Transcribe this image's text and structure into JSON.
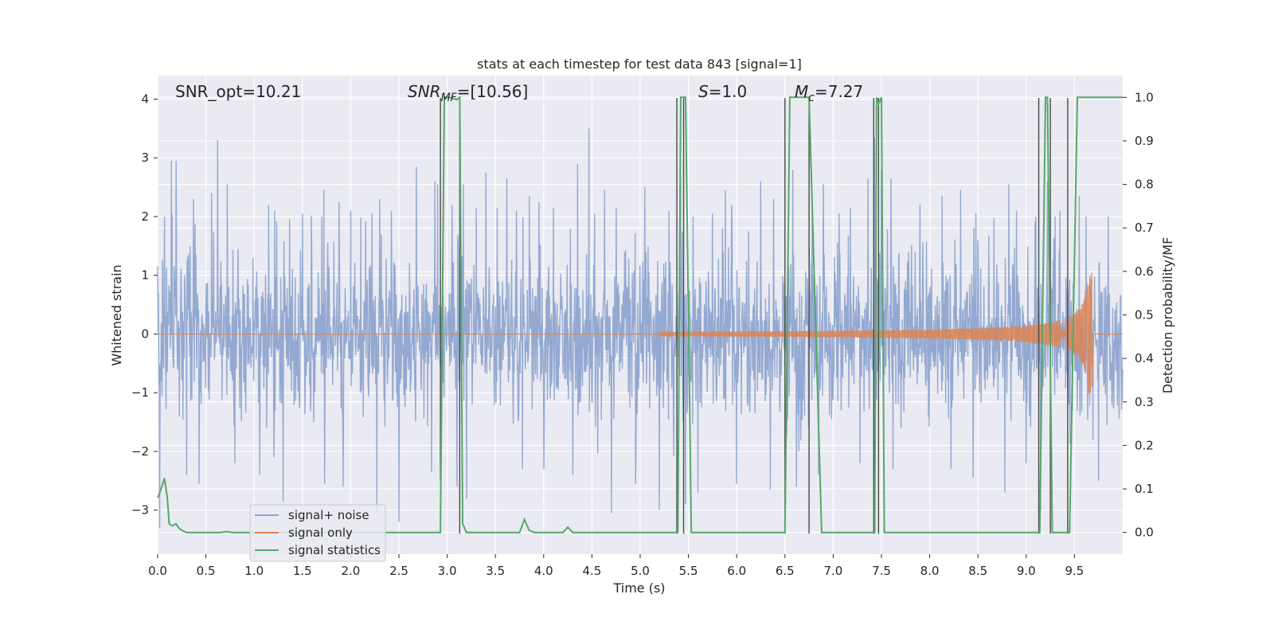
{
  "chart_data": {
    "type": "line",
    "title": "stats at each timestep for test data 843 [signal=1]",
    "xlabel": "Time (s)",
    "ylabel": "Whitened strain",
    "y2label": "Detection probability/MF",
    "xlim": [
      0,
      10
    ],
    "ylim": [
      -3.75,
      4.4
    ],
    "y2lim": [
      -0.05,
      1.05
    ],
    "xticks": [
      "0.0",
      "0.5",
      "1.0",
      "1.5",
      "2.0",
      "2.5",
      "3.0",
      "3.5",
      "4.0",
      "4.5",
      "5.0",
      "5.5",
      "6.0",
      "6.5",
      "7.0",
      "7.5",
      "8.0",
      "8.5",
      "9.0",
      "9.5"
    ],
    "xtick_values": [
      0,
      0.5,
      1,
      1.5,
      2,
      2.5,
      3,
      3.5,
      4,
      4.5,
      5,
      5.5,
      6,
      6.5,
      7,
      7.5,
      8,
      8.5,
      9,
      9.5
    ],
    "yticks": [
      "−3",
      "−2",
      "−1",
      "0",
      "1",
      "2",
      "3",
      "4"
    ],
    "ytick_values": [
      -3,
      -2,
      -1,
      0,
      1,
      2,
      3,
      4
    ],
    "y2ticks": [
      "0.0",
      "0.1",
      "0.2",
      "0.3",
      "0.4",
      "0.5",
      "0.6",
      "0.7",
      "0.8",
      "0.9",
      "1.0"
    ],
    "y2tick_values": [
      0,
      0.1,
      0.2,
      0.3,
      0.4,
      0.5,
      0.6,
      0.7,
      0.8,
      0.9,
      1.0
    ],
    "grid": true,
    "legend_position": "bottom-left",
    "annotations": {
      "snr_opt": "SNR_opt=10.21",
      "snr_mf_sym": "SNR",
      "snr_mf_sub": "MF",
      "snr_mf_val": "=[10.56]",
      "s_sym": "S",
      "s_val": "=1.0",
      "mc_sym": "M",
      "mc_sub": "c",
      "mc_val": "=7.27"
    },
    "colors": {
      "noise": "#8fa5cf",
      "signal": "#dd8452",
      "stats": "#55a868",
      "vline": "#4a4a4a",
      "background": "#eaeaf2",
      "grid": "#ffffff"
    },
    "series": [
      {
        "name": "signal+ noise",
        "description_range": [
          -3.4,
          3.5
        ],
        "peaks": [
          [
            0.07,
            2.0
          ],
          [
            0.14,
            2.95
          ],
          [
            0.19,
            2.95
          ],
          [
            0.37,
            2.3
          ],
          [
            0.56,
            2.4
          ],
          [
            0.62,
            3.3
          ],
          [
            0.72,
            2.55
          ],
          [
            1.15,
            2.2
          ],
          [
            1.5,
            2.05
          ],
          [
            1.7,
            2.0
          ],
          [
            1.72,
            2.45
          ],
          [
            1.88,
            2.25
          ],
          [
            2.0,
            2.1
          ],
          [
            2.22,
            2.05
          ],
          [
            2.3,
            2.3
          ],
          [
            2.42,
            2.1
          ],
          [
            2.68,
            2.85
          ],
          [
            2.87,
            2.6
          ],
          [
            2.9,
            2.55
          ],
          [
            3.05,
            2.2
          ],
          [
            3.17,
            2.55
          ],
          [
            3.3,
            2.15
          ],
          [
            3.4,
            2.75
          ],
          [
            3.52,
            2.15
          ],
          [
            3.62,
            2.65
          ],
          [
            3.72,
            2.1
          ],
          [
            3.85,
            2.35
          ],
          [
            3.95,
            2.25
          ],
          [
            4.1,
            2.15
          ],
          [
            4.35,
            2.9
          ],
          [
            4.47,
            3.5
          ],
          [
            4.63,
            2.45
          ],
          [
            4.75,
            2.15
          ],
          [
            5.05,
            2.5
          ],
          [
            5.3,
            2.1
          ],
          [
            5.42,
            2.7
          ],
          [
            5.55,
            2.0
          ],
          [
            5.75,
            2.05
          ],
          [
            5.88,
            2.45
          ],
          [
            5.95,
            2.2
          ],
          [
            6.25,
            2.6
          ],
          [
            6.38,
            2.3
          ],
          [
            6.58,
            2.8
          ],
          [
            6.78,
            2.1
          ],
          [
            6.9,
            2.55
          ],
          [
            7.06,
            2.05
          ],
          [
            7.18,
            2.15
          ],
          [
            7.36,
            2.65
          ],
          [
            7.43,
            3.35
          ],
          [
            7.5,
            2.8
          ],
          [
            7.6,
            2.65
          ],
          [
            7.9,
            2.2
          ],
          [
            8.13,
            2.35
          ],
          [
            8.32,
            2.45
          ],
          [
            8.48,
            2.05
          ],
          [
            8.82,
            2.55
          ],
          [
            8.9,
            2.1
          ],
          [
            9.1,
            2.0
          ],
          [
            9.22,
            2.6
          ],
          [
            9.3,
            2.0
          ],
          [
            9.35,
            2.1
          ],
          [
            9.55,
            2.35
          ],
          [
            9.62,
            2.0
          ],
          [
            9.85,
            2.0
          ]
        ],
        "troughs": [
          [
            0.02,
            -3.3
          ],
          [
            0.3,
            -2.4
          ],
          [
            0.43,
            -2.55
          ],
          [
            0.62,
            -2.75
          ],
          [
            0.8,
            -2.2
          ],
          [
            1.06,
            -2.4
          ],
          [
            1.3,
            -2.85
          ],
          [
            1.5,
            -2.65
          ],
          [
            1.73,
            -2.55
          ],
          [
            1.92,
            -2.6
          ],
          [
            2.27,
            -3.05
          ],
          [
            2.5,
            -3.2
          ],
          [
            2.68,
            -3.05
          ],
          [
            2.84,
            -2.35
          ],
          [
            3.1,
            -2.6
          ],
          [
            3.2,
            -2.8
          ],
          [
            3.78,
            -2.3
          ],
          [
            4.0,
            -2.3
          ],
          [
            4.3,
            -2.4
          ],
          [
            4.7,
            -3.05
          ],
          [
            4.95,
            -2.55
          ],
          [
            5.2,
            -3.0
          ],
          [
            5.47,
            -2.9
          ],
          [
            5.6,
            -2.7
          ],
          [
            6.0,
            -2.55
          ],
          [
            6.35,
            -2.65
          ],
          [
            6.62,
            -2.6
          ],
          [
            6.85,
            -2.4
          ],
          [
            7.06,
            -2.45
          ],
          [
            7.28,
            -2.2
          ],
          [
            7.43,
            -2.8
          ],
          [
            7.62,
            -2.3
          ],
          [
            7.9,
            -2.2
          ],
          [
            8.22,
            -2.3
          ],
          [
            8.45,
            -2.45
          ],
          [
            8.78,
            -2.7
          ],
          [
            9.0,
            -2.2
          ],
          [
            9.15,
            -3.0
          ],
          [
            9.35,
            -2.6
          ],
          [
            9.55,
            -2.75
          ],
          [
            9.75,
            -2.5
          ]
        ]
      },
      {
        "name": "signal only",
        "chirp_start": 5.2,
        "chirp_end": 9.68,
        "max_amplitude": 1.05
      },
      {
        "name": "signal statistics",
        "x": [
          0.0,
          0.02,
          0.05,
          0.07,
          0.1,
          0.12,
          0.15,
          0.19,
          0.22,
          0.25,
          0.3,
          0.35,
          0.5,
          0.65,
          0.72,
          0.78,
          1.0,
          2.5,
          2.93,
          2.97,
          3.02,
          3.1,
          3.13,
          3.16,
          3.2,
          3.25,
          3.5,
          3.75,
          3.8,
          3.85,
          3.9,
          4.0,
          4.2,
          4.25,
          4.3,
          4.5,
          5.0,
          5.39,
          5.42,
          5.47,
          5.53,
          5.6,
          6.0,
          6.5,
          6.55,
          6.75,
          6.88,
          6.95,
          7.0,
          7.43,
          7.45,
          7.47,
          7.5,
          7.53,
          7.6,
          8.0,
          9.0,
          9.14,
          9.2,
          9.22,
          9.27,
          9.3,
          9.45,
          9.53,
          9.6,
          10.0
        ],
        "y": [
          0.08,
          0.09,
          0.11,
          0.125,
          0.08,
          0.02,
          0.015,
          0.02,
          0.01,
          0.005,
          0.0,
          0.0,
          0.0,
          0.0,
          0.002,
          0.0,
          0.0,
          0.0,
          0.0,
          1.0,
          1.0,
          0.995,
          1.0,
          0.02,
          0.0,
          0.0,
          0.0,
          0.0,
          0.03,
          0.005,
          0.0,
          0.0,
          0.0,
          0.012,
          0.0,
          0.0,
          0.0,
          0.0,
          1.0,
          1.0,
          0.0,
          0.0,
          0.0,
          0.0,
          1.0,
          1.0,
          0.0,
          0.0,
          0.0,
          0.0,
          1.0,
          0.985,
          1.0,
          0.0,
          0.0,
          0.0,
          0.0,
          0.0,
          1.0,
          1.0,
          0.0,
          0.0,
          0.0,
          1.0,
          1.0,
          1.0
        ]
      }
    ],
    "vlines": [
      {
        "x": 2.93,
        "ymin": -2.5,
        "ymax": 4.02
      },
      {
        "x": 3.13,
        "ymin": -3.4,
        "ymax": 4.02
      },
      {
        "x": 5.38,
        "ymin": -3.4,
        "ymax": 4.02
      },
      {
        "x": 5.45,
        "ymin": -3.4,
        "ymax": 4.02
      },
      {
        "x": 6.5,
        "ymin": -3.4,
        "ymax": 4.02
      },
      {
        "x": 6.75,
        "ymin": -3.4,
        "ymax": 4.02
      },
      {
        "x": 7.42,
        "ymin": -3.4,
        "ymax": 4.02
      },
      {
        "x": 7.47,
        "ymin": -3.4,
        "ymax": 4.02
      },
      {
        "x": 9.13,
        "ymin": -3.4,
        "ymax": 4.02
      },
      {
        "x": 9.25,
        "ymin": -3.4,
        "ymax": 4.02
      },
      {
        "x": 9.43,
        "ymin": -3.4,
        "ymax": 4.02
      }
    ]
  }
}
